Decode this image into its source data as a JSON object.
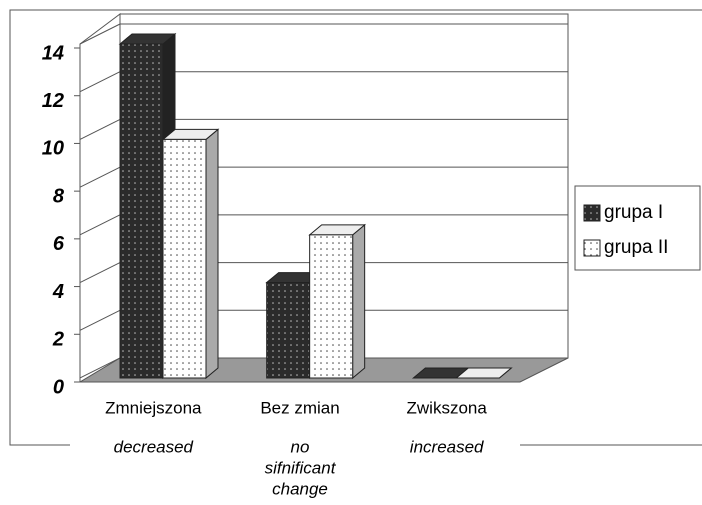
{
  "chart_data": {
    "type": "bar3d",
    "categories": [
      "Zmniejszona",
      "Bez zmian",
      "Zwikszona"
    ],
    "category_notes": [
      [
        "decreased"
      ],
      [
        "no",
        "sifnificant",
        "change"
      ],
      [
        "increased"
      ]
    ],
    "series": [
      {
        "name": "grupa I",
        "color": "#2b2b2b",
        "values": [
          14,
          4,
          0
        ]
      },
      {
        "name": "grupa II",
        "color": "#ffffff",
        "values": [
          10,
          6,
          0
        ]
      }
    ],
    "ylim": [
      0,
      14
    ],
    "yticks": [
      0,
      2,
      4,
      6,
      8,
      10,
      12,
      14
    ],
    "grid": true,
    "legend": "right"
  }
}
